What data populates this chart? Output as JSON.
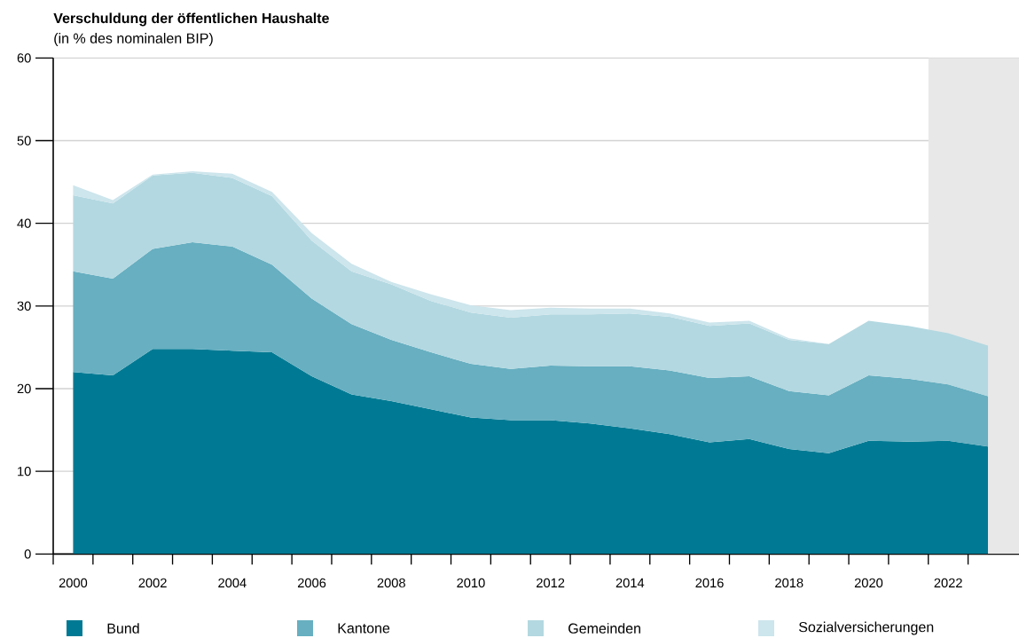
{
  "chart_data": {
    "type": "area",
    "title": "Verschuldung der öffentlichen Haushalte",
    "subtitle": "(in % des nominalen BIP)",
    "x": [
      2000,
      2001,
      2002,
      2003,
      2004,
      2005,
      2006,
      2007,
      2008,
      2009,
      2010,
      2011,
      2012,
      2013,
      2014,
      2015,
      2016,
      2017,
      2018,
      2019,
      2020,
      2021,
      2022,
      2023
    ],
    "series": [
      {
        "name": "Bund",
        "color": "#007a94",
        "values": [
          22.0,
          21.6,
          24.8,
          24.8,
          24.6,
          24.4,
          21.5,
          19.3,
          18.5,
          17.5,
          16.5,
          16.2,
          16.2,
          15.8,
          15.2,
          14.5,
          13.5,
          13.9,
          12.7,
          12.2,
          13.7,
          13.6,
          13.7,
          13.0
        ]
      },
      {
        "name": "Kantone",
        "color": "#67afc1",
        "values": [
          12.2,
          11.7,
          12.1,
          12.9,
          12.6,
          10.6,
          9.4,
          8.5,
          7.4,
          6.9,
          6.5,
          6.2,
          6.6,
          6.9,
          7.5,
          7.7,
          7.8,
          7.6,
          7.0,
          7.0,
          7.9,
          7.6,
          6.8,
          6.1
        ]
      },
      {
        "name": "Gemeinden",
        "color": "#b3d8e1",
        "values": [
          9.2,
          9.1,
          8.9,
          8.4,
          8.3,
          8.3,
          7.0,
          6.4,
          6.7,
          6.2,
          6.2,
          6.2,
          6.2,
          6.3,
          6.4,
          6.5,
          6.3,
          6.4,
          6.2,
          6.2,
          6.6,
          6.4,
          6.2,
          6.1
        ]
      },
      {
        "name": "Sozialversicherungen",
        "color": "#cde5ec",
        "values": [
          1.2,
          0.4,
          0.1,
          0.2,
          0.5,
          0.5,
          0.9,
          0.9,
          0.3,
          0.8,
          0.9,
          0.9,
          0.8,
          0.7,
          0.6,
          0.4,
          0.4,
          0.3,
          0.2,
          0.0,
          0.0,
          0.0,
          0.0,
          0.0
        ]
      }
    ],
    "stacked": true,
    "xlim": [
      1999.5,
      2023.78
    ],
    "ylim": [
      0,
      60
    ],
    "xticks": [
      2000,
      2002,
      2004,
      2006,
      2008,
      2010,
      2012,
      2014,
      2016,
      2018,
      2020,
      2022,
      {
        "value": 1999.5,
        "label": null
      },
      {
        "value": 2000.5,
        "label": null
      },
      {
        "value": 2001.5,
        "label": null
      },
      {
        "value": 2002.5,
        "label": null
      },
      {
        "value": 2003.5,
        "label": null
      },
      {
        "value": 2004.5,
        "label": null
      },
      {
        "value": 2005.5,
        "label": null
      },
      {
        "value": 2006.5,
        "label": null
      },
      {
        "value": 2007.5,
        "label": null
      },
      {
        "value": 2008.5,
        "label": null
      },
      {
        "value": 2009.5,
        "label": null
      },
      {
        "value": 2010.5,
        "label": null
      },
      {
        "value": 2011.5,
        "label": null
      },
      {
        "value": 2012.5,
        "label": null
      },
      {
        "value": 2013.5,
        "label": null
      },
      {
        "value": 2014.5,
        "label": null
      },
      {
        "value": 2015.5,
        "label": null
      },
      {
        "value": 2016.5,
        "label": null
      },
      {
        "value": 2017.5,
        "label": null
      },
      {
        "value": 2018.5,
        "label": null
      },
      {
        "value": 2019.5,
        "label": null
      },
      {
        "value": 2020.5,
        "label": null
      },
      {
        "value": 2021.5,
        "label": null
      },
      {
        "value": 2022.5,
        "label": null
      }
    ],
    "yticks": [
      0,
      10,
      20,
      30,
      40,
      50,
      60
    ],
    "bands": [
      {
        "axis": "x",
        "from": 2021.5,
        "to": 2023.78,
        "color": "#e8e8e8"
      }
    ],
    "grid": "y",
    "legend": "bottom"
  }
}
